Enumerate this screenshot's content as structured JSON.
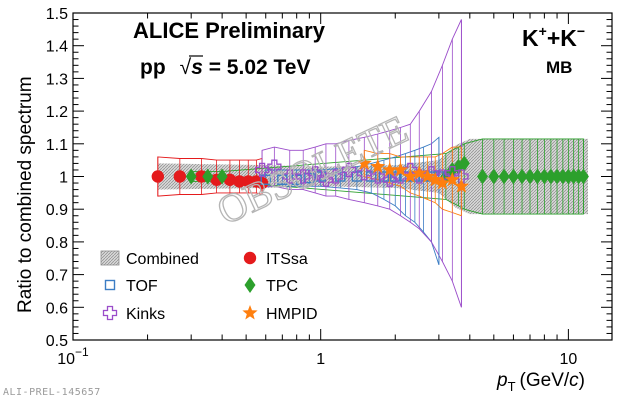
{
  "footer": {
    "id_text": "ALI-PREL-145657"
  },
  "header": {
    "title": "ALICE Preliminary",
    "system": "pp",
    "sqrt": "√",
    "energy_var": "s",
    "energy_value": " = 5.02 TeV",
    "particle_main": "K",
    "particle_sup_plus": "+",
    "particle_join": "+K",
    "particle_sup_minus": "−",
    "multiplicity": "MB"
  },
  "watermark": "OBSOLETE",
  "chart_data": {
    "type": "scatter",
    "xscale": "log",
    "xlim": [
      0.1,
      15
    ],
    "ylim": [
      0.5,
      1.5
    ],
    "ylabel": "Ratio to combined spectrum",
    "xlabel_var": "p",
    "xlabel_sub": "T",
    "xlabel_unit": "(GeV/",
    "xlabel_c": "c",
    "xlabel_close": ")",
    "x_ticks": [
      {
        "value": 0.1,
        "base": "10",
        "exp": "−1"
      },
      {
        "value": 1,
        "label": "1"
      },
      {
        "value": 10,
        "label": "10"
      }
    ],
    "y_ticks": [
      "0.5",
      "0.6",
      "0.7",
      "0.8",
      "0.9",
      "1",
      "1.1",
      "1.2",
      "1.3",
      "1.4",
      "1.5"
    ],
    "legend": [
      {
        "name": "Combined",
        "marker": "hatched-box",
        "color": "#888888"
      },
      {
        "name": "TOF",
        "marker": "open-square",
        "color": "#3b7dc4"
      },
      {
        "name": "Kinks",
        "marker": "open-cross",
        "color": "#9b4dca"
      },
      {
        "name": "ITSsa",
        "marker": "circle",
        "color": "#e41a1c"
      },
      {
        "name": "TPC",
        "marker": "diamond",
        "color": "#2ca02c"
      },
      {
        "name": "HMPID",
        "marker": "star",
        "color": "#ff7f0e"
      }
    ],
    "combined_band": [
      {
        "x": 0.22,
        "lo": 0.96,
        "hi": 1.04
      },
      {
        "x": 0.6,
        "lo": 0.965,
        "hi": 1.035
      },
      {
        "x": 1.0,
        "lo": 0.97,
        "hi": 1.03
      },
      {
        "x": 2.0,
        "lo": 0.965,
        "hi": 1.035
      },
      {
        "x": 3.0,
        "lo": 0.95,
        "hi": 1.05
      },
      {
        "x": 3.5,
        "lo": 0.905,
        "hi": 1.095
      },
      {
        "x": 4.0,
        "lo": 0.885,
        "hi": 1.115
      },
      {
        "x": 12.0,
        "lo": 0.885,
        "hi": 1.115
      }
    ],
    "series": [
      {
        "name": "ITSsa",
        "marker": "circle",
        "color": "#e41a1c",
        "x": [
          0.22,
          0.27,
          0.33,
          0.38,
          0.43,
          0.47,
          0.51,
          0.55,
          0.58
        ],
        "y": [
          1.0,
          1.0,
          1.0,
          0.99,
          0.99,
          0.985,
          0.985,
          0.985,
          0.98
        ],
        "sys_lo": [
          0.94,
          0.945,
          0.945,
          0.95,
          0.95,
          0.95,
          0.95,
          0.95,
          0.945
        ],
        "sys_hi": [
          1.06,
          1.055,
          1.055,
          1.05,
          1.05,
          1.05,
          1.05,
          1.05,
          1.055
        ]
      },
      {
        "name": "TPC",
        "marker": "diamond",
        "color": "#2ca02c",
        "x": [
          0.3,
          0.35,
          0.4,
          3.2,
          3.4,
          3.6,
          3.8,
          4.5,
          5.0,
          5.5,
          6.0,
          6.5,
          7.0,
          7.5,
          8.0,
          8.5,
          9.0,
          9.5,
          10.0,
          10.5,
          11.0,
          11.5
        ],
        "y": [
          1.0,
          1.0,
          1.0,
          1.0,
          1.02,
          1.03,
          1.04,
          1.0,
          1.0,
          1.0,
          1.0,
          1.0,
          1.0,
          1.0,
          1.0,
          1.0,
          1.0,
          1.0,
          1.0,
          1.0,
          1.0,
          1.0
        ],
        "sys_lo": [
          0.985,
          0.985,
          0.985,
          0.93,
          0.92,
          0.91,
          0.9,
          0.885,
          0.885,
          0.885,
          0.885,
          0.885,
          0.885,
          0.885,
          0.885,
          0.885,
          0.885,
          0.885,
          0.885,
          0.885,
          0.885,
          0.885
        ],
        "sys_hi": [
          1.015,
          1.015,
          1.015,
          1.07,
          1.08,
          1.09,
          1.1,
          1.115,
          1.115,
          1.115,
          1.115,
          1.115,
          1.115,
          1.115,
          1.115,
          1.115,
          1.115,
          1.115,
          1.115,
          1.115,
          1.115,
          1.115
        ]
      },
      {
        "name": "TOF",
        "marker": "open-square",
        "color": "#3b7dc4",
        "x": [
          0.6,
          0.7,
          0.8,
          0.9,
          1.0,
          1.2,
          1.4,
          1.6,
          1.8,
          2.0,
          2.2,
          2.4,
          2.6,
          2.8,
          3.0
        ],
        "y": [
          0.99,
          0.99,
          0.99,
          0.995,
          1.0,
          1.0,
          1.0,
          1.0,
          1.0,
          1.0,
          1.0,
          1.0,
          1.0,
          1.0,
          1.0
        ],
        "sys_lo": [
          0.97,
          0.97,
          0.97,
          0.97,
          0.97,
          0.965,
          0.96,
          0.95,
          0.93,
          0.91,
          0.88,
          0.86,
          0.83,
          0.8,
          0.73
        ],
        "sys_hi": [
          1.02,
          1.02,
          1.02,
          1.02,
          1.02,
          1.025,
          1.03,
          1.04,
          1.05,
          1.06,
          1.07,
          1.08,
          1.09,
          1.1,
          1.12
        ]
      },
      {
        "name": "Kinks",
        "marker": "open-cross",
        "color": "#9b4dca",
        "x": [
          0.58,
          0.65,
          0.75,
          0.85,
          0.95,
          1.05,
          1.15,
          1.3,
          1.5,
          1.7,
          1.9,
          2.1,
          2.3,
          2.5,
          2.8,
          3.1,
          3.4,
          3.7
        ],
        "y": [
          1.02,
          1.03,
          1.0,
          1.0,
          1.01,
          0.99,
          1.0,
          1.02,
          1.01,
          1.0,
          0.99,
          1.0,
          1.02,
          1.0,
          1.01,
          1.0,
          1.01,
          1.0
        ],
        "sys_lo": [
          0.97,
          0.97,
          0.96,
          0.96,
          0.95,
          0.94,
          0.94,
          0.93,
          0.92,
          0.91,
          0.9,
          0.88,
          0.86,
          0.84,
          0.8,
          0.74,
          0.68,
          0.6
        ],
        "sys_hi": [
          1.08,
          1.09,
          1.08,
          1.08,
          1.09,
          1.1,
          1.1,
          1.11,
          1.12,
          1.13,
          1.14,
          1.15,
          1.16,
          1.2,
          1.26,
          1.34,
          1.42,
          1.48
        ]
      },
      {
        "name": "HMPID",
        "marker": "star",
        "color": "#ff7f0e",
        "x": [
          1.5,
          1.7,
          1.9,
          2.1,
          2.3,
          2.5,
          2.7,
          2.9,
          3.1,
          3.4,
          3.7
        ],
        "y": [
          1.04,
          1.03,
          1.02,
          1.02,
          1.0,
          1.01,
          1.0,
          0.99,
          0.98,
          0.99,
          0.97
        ],
        "sys_lo": [
          1.0,
          0.99,
          0.98,
          0.97,
          0.95,
          0.94,
          0.93,
          0.92,
          0.9,
          0.89,
          0.88
        ],
        "sys_hi": [
          1.08,
          1.07,
          1.07,
          1.06,
          1.06,
          1.06,
          1.06,
          1.06,
          1.07,
          1.09,
          1.09
        ]
      }
    ]
  }
}
